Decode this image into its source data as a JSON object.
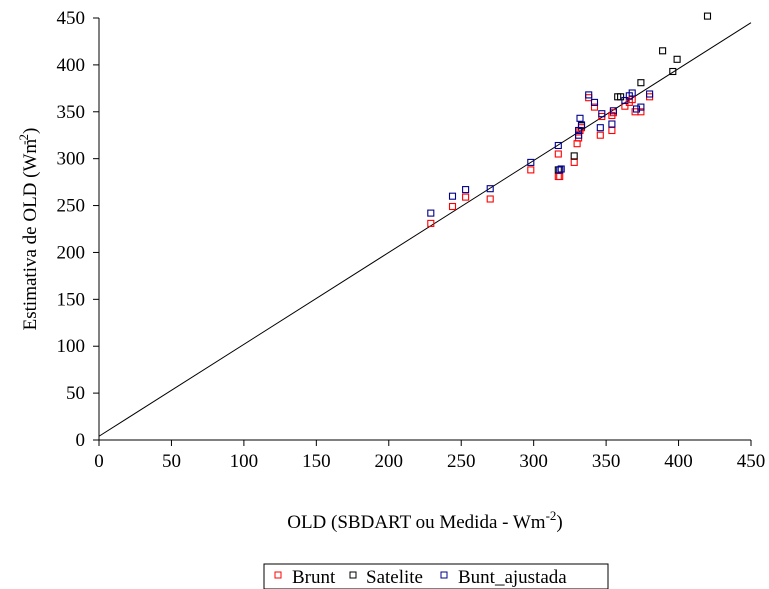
{
  "chart_data": {
    "type": "scatter",
    "title": "",
    "xlabel": "OLD  (SBDART ou Medida - Wm",
    "xlabel_sup": "-2",
    "xlabel_end": ")",
    "ylabel": "Estimativa de OLD (Wm",
    "ylabel_sup": "-2",
    "ylabel_end": ")",
    "xlim": [
      0,
      450
    ],
    "ylim": [
      0,
      450
    ],
    "x_ticks": [
      "0",
      "50",
      "100",
      "150",
      "200",
      "250",
      "300",
      "350",
      "400",
      "450"
    ],
    "y_ticks": [
      "0",
      "50",
      "100",
      "150",
      "200",
      "250",
      "300",
      "350",
      "400",
      "450"
    ],
    "grid": false,
    "legend_position": "bottom",
    "reference_line": {
      "x": [
        0,
        450
      ],
      "y": [
        4,
        445
      ]
    },
    "series": [
      {
        "name": "Brunt",
        "color": "#ff0000",
        "points": [
          [
            229,
            231
          ],
          [
            244,
            249
          ],
          [
            253,
            259
          ],
          [
            270,
            257
          ],
          [
            298,
            288
          ],
          [
            317,
            281
          ],
          [
            317,
            305
          ],
          [
            318,
            281
          ],
          [
            328,
            296
          ],
          [
            330,
            316
          ],
          [
            331,
            322
          ],
          [
            332,
            330
          ],
          [
            333,
            333
          ],
          [
            338,
            365
          ],
          [
            342,
            355
          ],
          [
            346,
            325
          ],
          [
            347,
            345
          ],
          [
            354,
            346
          ],
          [
            354,
            330
          ],
          [
            355,
            349
          ],
          [
            363,
            356
          ],
          [
            366,
            360
          ],
          [
            368,
            363
          ],
          [
            370,
            350
          ],
          [
            374,
            350
          ],
          [
            380,
            366
          ]
        ]
      },
      {
        "name": "Satelite",
        "color": "#000000",
        "points": [
          [
            317,
            288
          ],
          [
            328,
            303
          ],
          [
            333,
            335
          ],
          [
            358,
            366
          ],
          [
            360,
            366
          ],
          [
            374,
            381
          ],
          [
            389,
            415
          ],
          [
            396,
            393
          ],
          [
            399,
            406
          ],
          [
            420,
            452
          ]
        ]
      },
      {
        "name": "Bunt_ajustada",
        "color": "#00008b",
        "points": [
          [
            229,
            242
          ],
          [
            244,
            260
          ],
          [
            253,
            267
          ],
          [
            270,
            268
          ],
          [
            298,
            296
          ],
          [
            317,
            314
          ],
          [
            318,
            288
          ],
          [
            319,
            289
          ],
          [
            331,
            325
          ],
          [
            331,
            330
          ],
          [
            332,
            343
          ],
          [
            333,
            336
          ],
          [
            338,
            368
          ],
          [
            342,
            360
          ],
          [
            346,
            333
          ],
          [
            347,
            348
          ],
          [
            354,
            337
          ],
          [
            355,
            351
          ],
          [
            363,
            362
          ],
          [
            366,
            367
          ],
          [
            368,
            370
          ],
          [
            371,
            353
          ],
          [
            374,
            355
          ],
          [
            380,
            369
          ]
        ]
      }
    ]
  }
}
